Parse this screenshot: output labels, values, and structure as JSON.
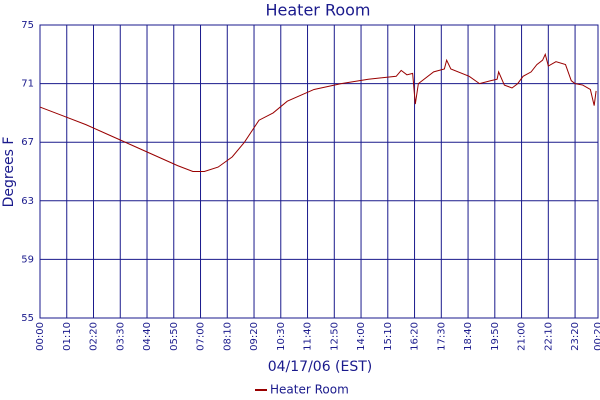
{
  "chart_data": {
    "type": "line",
    "title": "Heater Room",
    "x_label": "04/17/06 (EST)",
    "y_label": "Degrees F",
    "x": [
      0,
      60,
      120,
      180,
      240,
      300,
      360,
      400,
      430,
      466,
      503,
      535,
      573,
      610,
      647,
      717,
      788,
      859,
      932,
      945,
      960,
      975,
      982,
      990,
      1030,
      1058,
      1064,
      1075,
      1123,
      1150,
      1180,
      1196,
      1200,
      1215,
      1235,
      1250,
      1264,
      1285,
      1300,
      1315,
      1322,
      1330,
      1350,
      1375,
      1390,
      1400,
      1420,
      1440,
      1450,
      1455
    ],
    "series": [
      {
        "name": "Heater Room",
        "color": "#990000",
        "values": [
          69.4,
          68.8,
          68.2,
          67.5,
          66.8,
          66.1,
          65.4,
          65.0,
          65.0,
          65.3,
          66.0,
          67.0,
          68.5,
          69.0,
          69.8,
          70.6,
          71.0,
          71.3,
          71.5,
          71.9,
          71.6,
          71.7,
          69.6,
          71.0,
          71.8,
          72.0,
          72.6,
          72.0,
          71.5,
          71.0,
          71.2,
          71.3,
          71.8,
          70.9,
          70.7,
          71.0,
          71.5,
          71.8,
          72.3,
          72.6,
          73.0,
          72.2,
          72.5,
          72.3,
          71.2,
          71.0,
          70.9,
          70.6,
          69.5,
          70.5
        ]
      }
    ],
    "xlim": [
      0,
      1460
    ],
    "xticks": [
      {
        "value": 0,
        "label": "00:00"
      },
      {
        "value": 70,
        "label": "01:10"
      },
      {
        "value": 140,
        "label": "02:20"
      },
      {
        "value": 210,
        "label": "03:30"
      },
      {
        "value": 280,
        "label": "04:40"
      },
      {
        "value": 350,
        "label": "05:50"
      },
      {
        "value": 420,
        "label": "07:00"
      },
      {
        "value": 490,
        "label": "08:10"
      },
      {
        "value": 560,
        "label": "09:20"
      },
      {
        "value": 630,
        "label": "10:30"
      },
      {
        "value": 700,
        "label": "11:40"
      },
      {
        "value": 770,
        "label": "12:50"
      },
      {
        "value": 840,
        "label": "14:00"
      },
      {
        "value": 910,
        "label": "15:10"
      },
      {
        "value": 980,
        "label": "16:20"
      },
      {
        "value": 1050,
        "label": "17:30"
      },
      {
        "value": 1120,
        "label": "18:40"
      },
      {
        "value": 1190,
        "label": "19:50"
      },
      {
        "value": 1260,
        "label": "21:00"
      },
      {
        "value": 1330,
        "label": "22:10"
      },
      {
        "value": 1400,
        "label": "23:20"
      },
      {
        "value": 1460,
        "label": "00:20"
      }
    ],
    "ylim": [
      55,
      75
    ],
    "yticks": [
      55,
      59,
      63,
      67,
      71,
      75
    ],
    "grid": true,
    "legend": "bottom"
  }
}
